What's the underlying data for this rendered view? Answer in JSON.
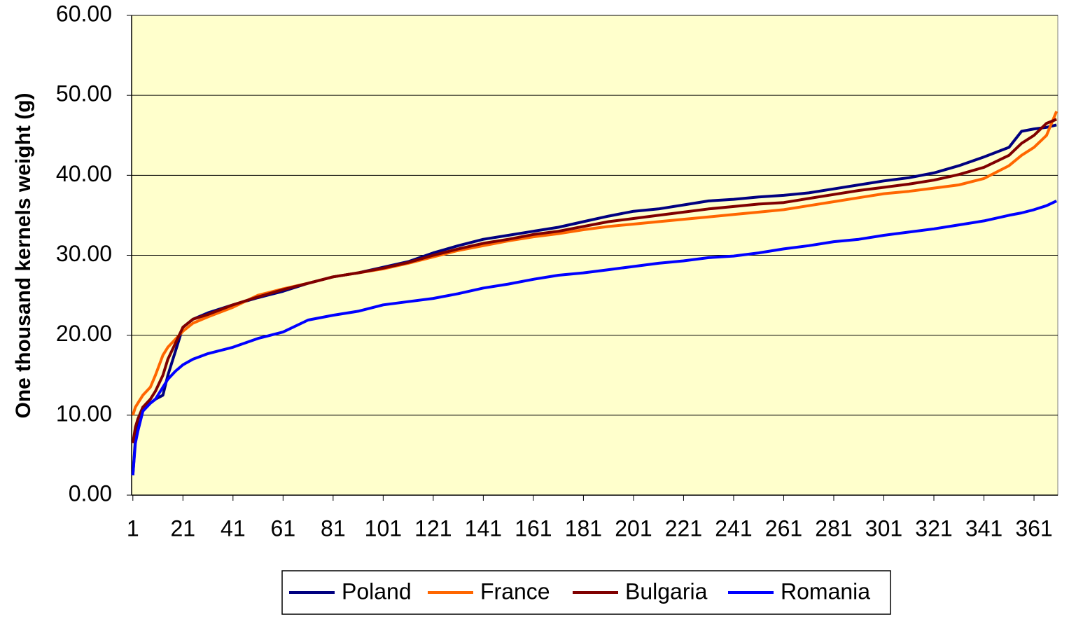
{
  "chart_data": {
    "type": "line",
    "y_label": "One thousand  kernels weight (g)",
    "x": [
      1,
      2,
      3,
      5,
      8,
      10,
      13,
      15,
      18,
      21,
      25,
      31,
      41,
      51,
      61,
      71,
      81,
      91,
      101,
      111,
      121,
      131,
      141,
      151,
      161,
      171,
      181,
      191,
      201,
      211,
      221,
      231,
      241,
      251,
      261,
      271,
      281,
      291,
      301,
      311,
      321,
      331,
      341,
      351,
      356,
      361,
      366,
      370
    ],
    "series": [
      {
        "name": "Poland",
        "color": "#000080",
        "values": [
          2.5,
          7,
          9.5,
          11,
          11.5,
          12,
          12.5,
          15,
          18,
          21,
          22,
          22.8,
          23.8,
          24.7,
          25.5,
          26.5,
          27.3,
          27.8,
          28.5,
          29.2,
          30.3,
          31.2,
          32,
          32.5,
          33,
          33.5,
          34.2,
          34.9,
          35.5,
          35.8,
          36.3,
          36.8,
          37,
          37.3,
          37.5,
          37.8,
          38.3,
          38.8,
          39.3,
          39.7,
          40.3,
          41.2,
          42.3,
          43.5,
          45.5,
          45.8,
          46,
          46.3
        ]
      },
      {
        "name": "France",
        "color": "#ff6600",
        "values": [
          10,
          11,
          11.5,
          12.5,
          13.5,
          15,
          17.5,
          18.5,
          19.5,
          20.5,
          21.5,
          22.3,
          23.5,
          25,
          25.8,
          26.5,
          27.3,
          27.8,
          28.3,
          29,
          29.8,
          30.6,
          31.2,
          31.8,
          32.3,
          32.7,
          33.2,
          33.6,
          33.9,
          34.2,
          34.5,
          34.8,
          35.1,
          35.4,
          35.7,
          36.2,
          36.7,
          37.2,
          37.7,
          38,
          38.4,
          38.8,
          39.6,
          41.2,
          42.5,
          43.5,
          45,
          48
        ]
      },
      {
        "name": "Bulgaria",
        "color": "#800000",
        "values": [
          6.5,
          8.5,
          9.5,
          11,
          12,
          13,
          15,
          17,
          19,
          21,
          22,
          22.6,
          23.8,
          24.8,
          25.7,
          26.5,
          27.3,
          27.8,
          28.4,
          29.1,
          30,
          30.8,
          31.5,
          32,
          32.6,
          33,
          33.6,
          34.2,
          34.6,
          35,
          35.4,
          35.8,
          36.1,
          36.4,
          36.6,
          37.1,
          37.6,
          38.1,
          38.5,
          38.9,
          39.4,
          40.1,
          41,
          42.5,
          44,
          45,
          46.5,
          47
        ]
      },
      {
        "name": "Romania",
        "color": "#0000ff",
        "values": [
          2.5,
          6.5,
          8,
          10.5,
          11.5,
          12,
          13.5,
          14.5,
          15.5,
          16.3,
          17,
          17.7,
          18.5,
          19.6,
          20.4,
          21.9,
          22.5,
          23,
          23.8,
          24.2,
          24.6,
          25.2,
          25.9,
          26.4,
          27,
          27.5,
          27.8,
          28.2,
          28.6,
          29,
          29.3,
          29.7,
          29.9,
          30.3,
          30.8,
          31.2,
          31.7,
          32,
          32.5,
          32.9,
          33.3,
          33.8,
          34.3,
          35,
          35.3,
          35.7,
          36.2,
          36.8
        ]
      }
    ],
    "xlim": [
      0.5,
      370.5
    ],
    "xticks": [
      1,
      21,
      41,
      61,
      81,
      101,
      121,
      141,
      161,
      181,
      201,
      221,
      241,
      261,
      281,
      301,
      321,
      341,
      361
    ],
    "ylim": [
      0,
      60
    ],
    "yticks": [
      {
        "value": 0,
        "label": "0.00"
      },
      {
        "value": 10,
        "label": "10.00"
      },
      {
        "value": 20,
        "label": "20.00"
      },
      {
        "value": 30,
        "label": "30.00"
      },
      {
        "value": 40,
        "label": "40.00"
      },
      {
        "value": 50,
        "label": "50.00"
      },
      {
        "value": 60,
        "label": "60.00"
      }
    ],
    "grid": true,
    "legend": "bottom",
    "plot_background": "#ffffcc"
  }
}
